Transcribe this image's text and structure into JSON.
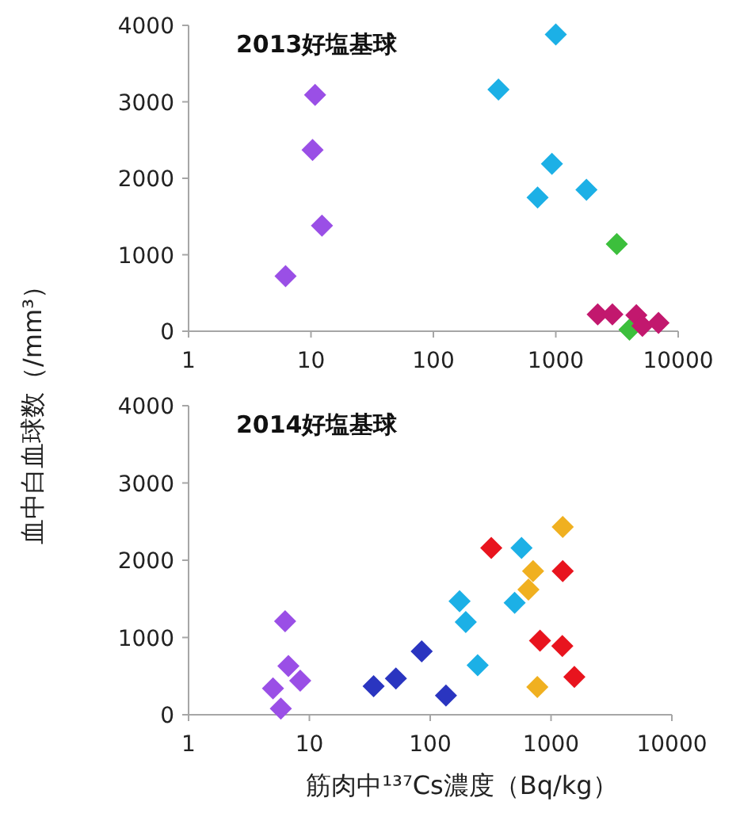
{
  "chart_data": [
    {
      "type": "scatter",
      "title": "2013好塩基球",
      "ylabel": "血中白血球数（/mm³）",
      "log": "x",
      "marker": "diamond",
      "xlim": [
        1,
        10000
      ],
      "xticks": [
        1,
        10,
        100,
        1000,
        10000
      ],
      "ylim": [
        0,
        4000
      ],
      "yticks": [
        0,
        1000,
        2000,
        3000,
        4000
      ],
      "series": [
        {
          "color": "#9a4fe6",
          "x": [
            6.2,
            10.8,
            10.3,
            12.3
          ],
          "values": [
            720,
            3090,
            2370,
            1380
          ]
        },
        {
          "color": "#1cb0e6",
          "x": [
            340,
            1000,
            930,
            710,
            1780
          ],
          "values": [
            3160,
            3880,
            2190,
            1750,
            1850
          ]
        },
        {
          "color": "#3cbf3c",
          "x": [
            3150,
            4000
          ],
          "values": [
            1140,
            20
          ]
        },
        {
          "color": "#c2186e",
          "x": [
            2200,
            2900,
            4550,
            5100,
            6900
          ],
          "values": [
            220,
            220,
            210,
            70,
            110
          ]
        }
      ]
    },
    {
      "type": "scatter",
      "title": "2014好塩基球",
      "xlabel": "筋肉中¹³⁷Cs濃度（Bq/kg）",
      "log": "x",
      "marker": "diamond",
      "xlim": [
        1,
        10000
      ],
      "xticks": [
        1,
        10,
        100,
        1000,
        10000
      ],
      "ylim": [
        0,
        4000
      ],
      "yticks": [
        0,
        1000,
        2000,
        3000,
        4000
      ],
      "series": [
        {
          "color": "#9a4fe6",
          "x": [
            6.3,
            6.7,
            8.4,
            5.0,
            5.8
          ],
          "values": [
            1210,
            630,
            440,
            340,
            80
          ]
        },
        {
          "color": "#2a35c0",
          "x": [
            34,
            52,
            85,
            135
          ],
          "values": [
            370,
            470,
            820,
            250
          ]
        },
        {
          "color": "#1cb0e6",
          "x": [
            175,
            197,
            247,
            500,
            570
          ],
          "values": [
            1470,
            1200,
            640,
            1450,
            2160
          ]
        },
        {
          "color": "#e8141e",
          "x": [
            320,
            1250,
            810,
            1240,
            1560
          ],
          "values": [
            2160,
            1860,
            960,
            890,
            490
          ]
        },
        {
          "color": "#f0b020",
          "x": [
            1250,
            710,
            650,
            770
          ],
          "values": [
            2430,
            1860,
            1620,
            360
          ]
        }
      ]
    }
  ]
}
